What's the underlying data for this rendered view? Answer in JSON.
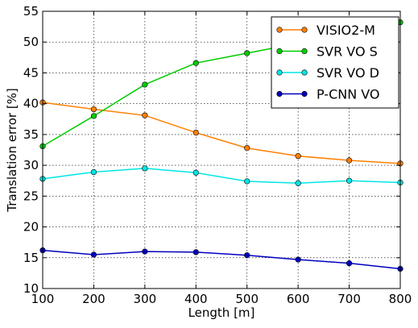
{
  "chart_data": {
    "type": "line",
    "title": "",
    "xlabel": "Length [m]",
    "ylabel": "Translation error [%]",
    "x": [
      100,
      200,
      300,
      400,
      500,
      600,
      700,
      800
    ],
    "xlim": [
      100,
      800
    ],
    "ylim": [
      10,
      55
    ],
    "xticks": [
      "100",
      "200",
      "300",
      "400",
      "500",
      "600",
      "700",
      "800"
    ],
    "yticks": [
      "10",
      "15",
      "20",
      "25",
      "30",
      "35",
      "40",
      "45",
      "50",
      "55"
    ],
    "grid": true,
    "legend_position": "top-right",
    "series": [
      {
        "name": "VISIO2-M",
        "color": "#ff8000",
        "values": [
          40.2,
          39.1,
          38.1,
          35.3,
          32.8,
          31.5,
          30.8,
          30.3
        ]
      },
      {
        "name": "SVR VO S",
        "color": "#00cc00",
        "values": [
          33.1,
          38.0,
          43.1,
          46.6,
          48.2,
          49.8,
          51.6,
          53.2
        ]
      },
      {
        "name": "SVR VO D",
        "color": "#00e5e5",
        "values": [
          27.8,
          28.9,
          29.5,
          28.8,
          27.4,
          27.1,
          27.5,
          27.2
        ]
      },
      {
        "name": "P-CNN VO",
        "color": "#0000bf",
        "values": [
          16.2,
          15.5,
          16.0,
          15.9,
          15.4,
          14.7,
          14.1,
          13.2
        ]
      }
    ]
  }
}
